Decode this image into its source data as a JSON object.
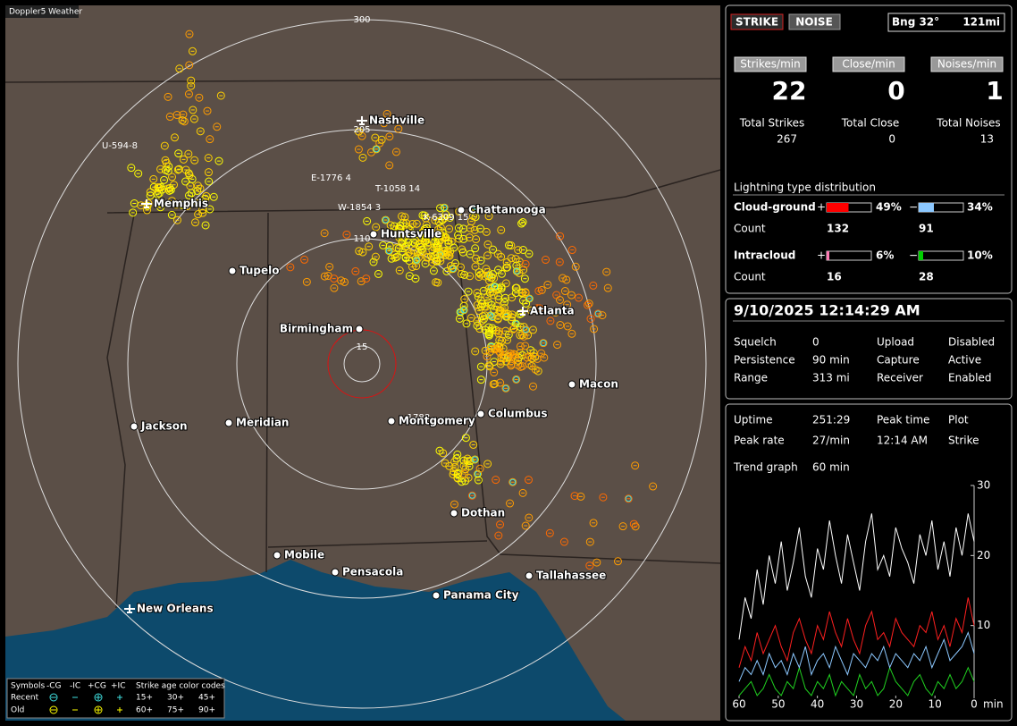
{
  "window_title": "Doppler5 Weather",
  "map": {
    "range_labels": [
      "300",
      "205",
      "110",
      "15"
    ],
    "cities": [
      "Nashville",
      "Memphis",
      "Chattanooga",
      "Huntsville",
      "Tupelo",
      "Atlanta",
      "Birmingham",
      "Macon",
      "Jackson",
      "Meridian",
      "Montgomery",
      "Columbus",
      "Dothan",
      "Mobile",
      "Pensacola",
      "Panama City",
      "Tallahassee",
      "New Orleans"
    ],
    "strike_labels": [
      "U-594-8",
      "E-1776 4",
      "T-1058 14",
      "W-1854 3",
      "K-6309 15",
      "-1788"
    ],
    "legend": {
      "header": [
        "Symbols",
        "-CG",
        "-IC",
        "+CG",
        "+IC",
        "Strike age color codes"
      ],
      "rows": [
        {
          "label": "Recent",
          "ages": [
            "15+",
            "30+",
            "45+"
          ]
        },
        {
          "label": "Old",
          "ages": [
            "60+",
            "75+",
            "90+"
          ]
        }
      ]
    }
  },
  "panel": {
    "mode_buttons": [
      "STRIKE",
      "NOISE"
    ],
    "bearing": "Bng 32°",
    "distance": "121mi",
    "rates": [
      {
        "label": "Strikes/min",
        "value": 22,
        "total_label": "Total Strikes",
        "total": 267
      },
      {
        "label": "Close/min",
        "value": 0,
        "total_label": "Total Close",
        "total": 0
      },
      {
        "label": "Noises/min",
        "value": 1,
        "total_label": "Total Noises",
        "total": 13
      }
    ],
    "distribution": {
      "title": "Lightning type distribution",
      "count_label": "Count",
      "plus_sign": "+",
      "minus_sign": "−",
      "rows": [
        {
          "label": "Cloud-ground",
          "plus": {
            "value": 49,
            "label": "49%"
          },
          "minus": {
            "value": 34,
            "label": "34%"
          },
          "plus_count": 132,
          "minus_count": 91,
          "plus_color": "#ff0000",
          "minus_color": "#8cc8ff"
        },
        {
          "label": "Intracloud",
          "plus": {
            "value": 6,
            "label": "6%"
          },
          "minus": {
            "value": 10,
            "label": "10%"
          },
          "plus_count": 16,
          "minus_count": 28,
          "plus_color": "#ff7ab4",
          "minus_color": "#00d000"
        }
      ]
    },
    "datetime": "9/10/2025 12:14:29 AM",
    "settings": [
      [
        "Squelch",
        "0"
      ],
      [
        "Persistence",
        "90 min"
      ],
      [
        "Range",
        "313 mi"
      ],
      [
        "Upload",
        "Disabled"
      ],
      [
        "Capture",
        "Active"
      ],
      [
        "Receiver",
        "Enabled"
      ]
    ],
    "stats": [
      [
        "Uptime",
        "251:29"
      ],
      [
        "Peak rate",
        "27/min"
      ]
    ],
    "peak_time": [
      "Peak time",
      "12:14 AM"
    ],
    "plot": [
      "Plot",
      "Strike"
    ],
    "trend": {
      "label": "Trend graph",
      "window": "60 min",
      "ylim": [
        0,
        30
      ],
      "yticks": [
        10,
        20,
        30
      ],
      "xlim": [
        60,
        0
      ],
      "xticks": [
        60,
        50,
        40,
        30,
        20,
        10,
        0
      ],
      "x_unit": "min",
      "series": [
        {
          "color": "#ffffff",
          "values": [
            8,
            14,
            11,
            18,
            13,
            20,
            16,
            22,
            15,
            19,
            24,
            17,
            14,
            21,
            18,
            25,
            20,
            16,
            23,
            19,
            15,
            22,
            26,
            18,
            20,
            17,
            24,
            21,
            19,
            16,
            23,
            20,
            25,
            18,
            22,
            17,
            24,
            20,
            26,
            22
          ]
        },
        {
          "color": "#ff2020",
          "values": [
            4,
            7,
            5,
            9,
            6,
            8,
            10,
            7,
            5,
            9,
            11,
            8,
            6,
            10,
            8,
            12,
            9,
            7,
            11,
            8,
            6,
            10,
            12,
            8,
            9,
            7,
            11,
            9,
            8,
            7,
            10,
            9,
            12,
            8,
            10,
            7,
            11,
            9,
            14,
            10
          ]
        },
        {
          "color": "#8cc8ff",
          "values": [
            2,
            4,
            3,
            5,
            3,
            6,
            4,
            5,
            3,
            6,
            4,
            7,
            3,
            5,
            6,
            4,
            7,
            5,
            3,
            6,
            5,
            4,
            6,
            5,
            7,
            4,
            6,
            5,
            4,
            6,
            5,
            7,
            4,
            6,
            8,
            5,
            6,
            7,
            9,
            6
          ]
        },
        {
          "color": "#20d020",
          "values": [
            0,
            1,
            2,
            0,
            1,
            3,
            1,
            0,
            2,
            1,
            4,
            1,
            0,
            2,
            1,
            3,
            0,
            2,
            1,
            0,
            3,
            1,
            2,
            0,
            1,
            4,
            2,
            1,
            0,
            2,
            3,
            1,
            0,
            2,
            1,
            3,
            1,
            2,
            4,
            2
          ]
        }
      ]
    }
  }
}
